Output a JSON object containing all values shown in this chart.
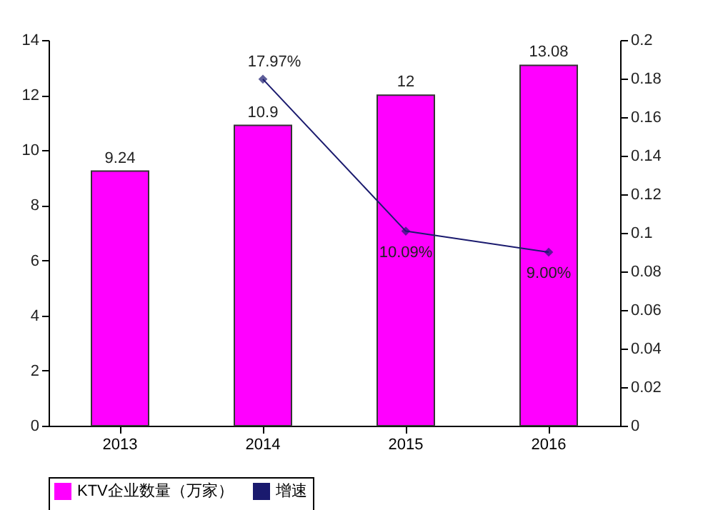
{
  "chart_data": {
    "type": "bar",
    "categories": [
      "2013",
      "2014",
      "2015",
      "2016"
    ],
    "series": [
      {
        "name": "KTV企业数量（万家）",
        "color": "#ff00ff",
        "values": [
          9.24,
          10.9,
          12,
          13.08
        ],
        "value_labels": [
          "9.24",
          "10.9",
          "12",
          "13.08"
        ]
      },
      {
        "name": "增速",
        "type": "line",
        "axis": "y2",
        "color": "#1a1a6e",
        "values": [
          null,
          0.1797,
          0.1009,
          0.09
        ],
        "value_labels": [
          null,
          "17.97%",
          "10.09%",
          "9.00%"
        ]
      }
    ],
    "ylim": [
      0,
      14
    ],
    "yticks": [
      0,
      2,
      4,
      6,
      8,
      10,
      12,
      14
    ],
    "y2lim": [
      0,
      0.2
    ],
    "y2ticks": [
      0,
      0.02,
      0.04,
      0.06,
      0.08,
      0.1,
      0.12,
      0.14,
      0.16,
      0.18,
      0.2
    ],
    "marker": "diamond",
    "legend": "bottom",
    "grid": false
  }
}
